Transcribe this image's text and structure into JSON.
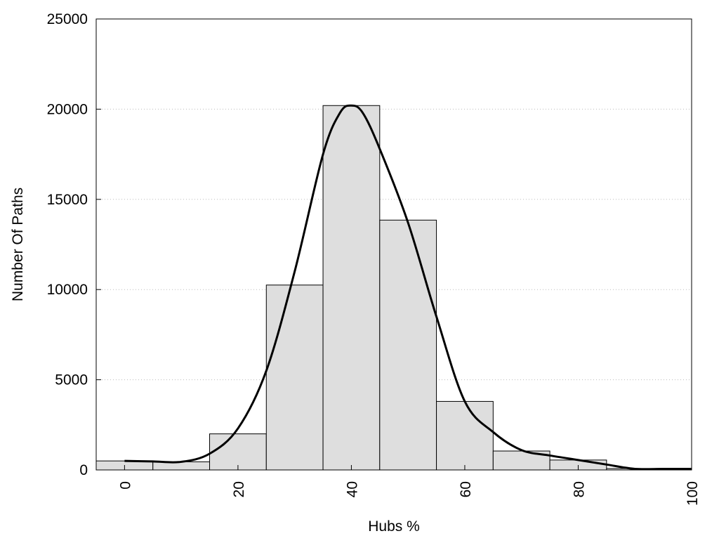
{
  "chart_data": {
    "type": "bar",
    "title": "",
    "xlabel": "Hubs %",
    "ylabel": "Number Of Paths",
    "xlim": [
      -5,
      100
    ],
    "ylim": [
      0,
      25000
    ],
    "x_ticks": [
      "0",
      "20",
      "40",
      "60",
      "80",
      "100"
    ],
    "y_ticks": [
      "0",
      "5000",
      "10000",
      "15000",
      "20000",
      "25000"
    ],
    "grid": "horizontal dotted",
    "legend": "none",
    "bar_width": 10,
    "bin_centers": [
      0,
      10,
      20,
      30,
      40,
      50,
      60,
      70,
      80,
      90,
      100
    ],
    "values": [
      500,
      450,
      2000,
      10250,
      20200,
      13850,
      3800,
      1050,
      550,
      80,
      60
    ],
    "bar_color": "#dedede",
    "bar_stroke": "#000000",
    "curve": {
      "x": [
        0,
        5,
        10,
        15,
        20,
        25,
        30,
        35,
        38,
        40,
        42,
        45,
        50,
        55,
        60,
        65,
        70,
        75,
        80,
        85,
        90,
        95,
        100
      ],
      "y": [
        500,
        470,
        450,
        900,
        2300,
        5500,
        11000,
        17500,
        19800,
        20200,
        19800,
        17800,
        13700,
        8500,
        3800,
        2100,
        1100,
        800,
        550,
        300,
        60,
        60,
        60
      ],
      "color": "#000000"
    }
  }
}
